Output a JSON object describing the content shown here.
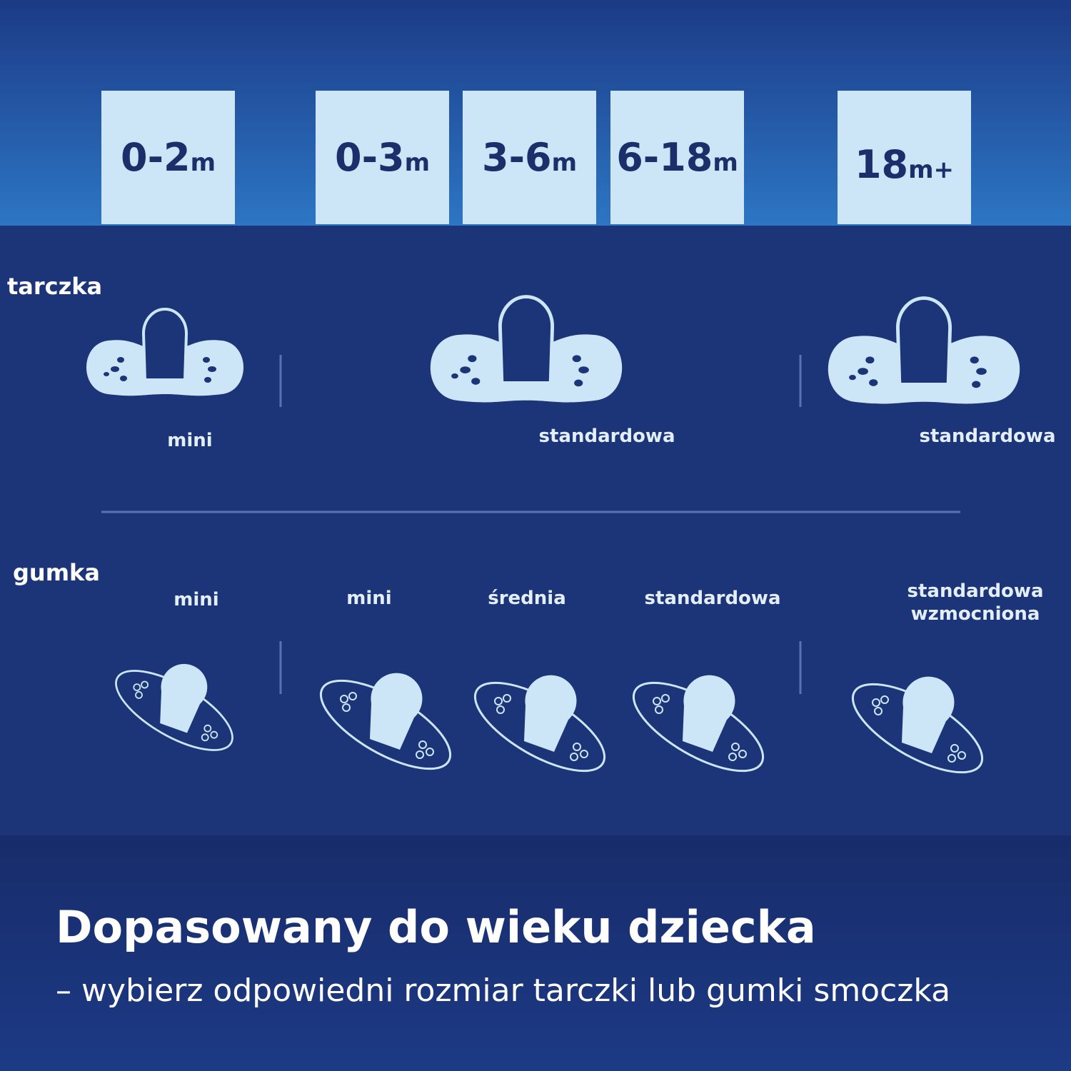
{
  "age_groups": [
    {
      "range": "0-2",
      "unit": "m"
    },
    {
      "range": "0-3",
      "unit": "m"
    },
    {
      "range": "3-6",
      "unit": "m"
    },
    {
      "range": "6-18",
      "unit": "m"
    },
    {
      "range": "18",
      "unit": "m+"
    }
  ],
  "shield": {
    "label": "tarczka",
    "sizes": [
      "mini",
      "standardowa",
      "standardowa"
    ]
  },
  "teat": {
    "label": "gumka",
    "sizes": [
      [
        "mini"
      ],
      [
        "mini"
      ],
      [
        "średnia"
      ],
      [
        "standardowa"
      ],
      [
        "standardowa",
        "wzmocniona"
      ]
    ]
  },
  "footer": {
    "title": "Dopasowany do wieku dziecka",
    "subtitle": "– wybierz odpowiedni rozmiar tarczki lub gumki smoczka"
  }
}
